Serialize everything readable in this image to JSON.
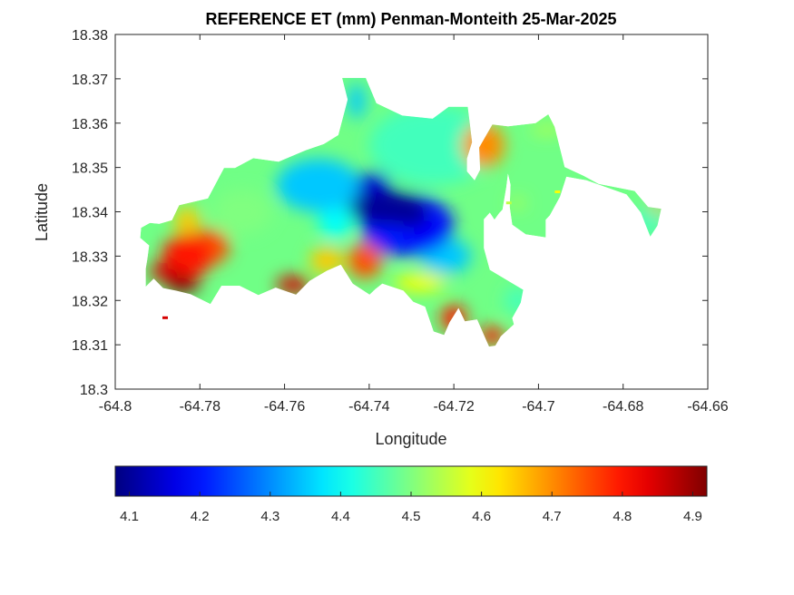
{
  "chart_data": {
    "type": "heatmap",
    "title": "REFERENCE ET (mm) Penman-Monteith 25-Mar-2025",
    "xlabel": "Longitude",
    "ylabel": "Latitude",
    "xlim": [
      -64.8,
      -64.66
    ],
    "ylim": [
      18.3,
      18.38
    ],
    "x_ticks": [
      "-64.8",
      "-64.78",
      "-64.76",
      "-64.74",
      "-64.72",
      "-64.7",
      "-64.68",
      "-64.66"
    ],
    "y_ticks": [
      "18.3",
      "18.31",
      "18.32",
      "18.33",
      "18.34",
      "18.35",
      "18.36",
      "18.37",
      "18.38"
    ],
    "colormap": "jet",
    "colorbar": {
      "location": "bottom",
      "range": [
        4.08,
        4.92
      ],
      "ticks": [
        "4.1",
        "4.2",
        "4.3",
        "4.4",
        "4.5",
        "4.6",
        "4.7",
        "4.8",
        "4.9"
      ]
    },
    "grid": false,
    "island_outline": [
      [
        -64.7939,
        18.3364
      ],
      [
        -64.7918,
        18.3375
      ],
      [
        -64.7896,
        18.3373
      ],
      [
        -64.7866,
        18.3381
      ],
      [
        -64.7849,
        18.3415
      ],
      [
        -64.7781,
        18.343
      ],
      [
        -64.7743,
        18.3499
      ],
      [
        -64.7717,
        18.3499
      ],
      [
        -64.7674,
        18.3521
      ],
      [
        -64.7614,
        18.3513
      ],
      [
        -64.755,
        18.3539
      ],
      [
        -64.7507,
        18.3553
      ],
      [
        -64.7473,
        18.3573
      ],
      [
        -64.7451,
        18.3653
      ],
      [
        -64.7464,
        18.3702
      ],
      [
        -64.7408,
        18.3702
      ],
      [
        -64.7383,
        18.3645
      ],
      [
        -64.7322,
        18.3617
      ],
      [
        -64.725,
        18.361
      ],
      [
        -64.7212,
        18.3637
      ],
      [
        -64.7167,
        18.3637
      ],
      [
        -64.7157,
        18.3557
      ],
      [
        -64.7169,
        18.352
      ],
      [
        -64.7169,
        18.3491
      ],
      [
        -64.7151,
        18.3471
      ],
      [
        -64.7138,
        18.3495
      ],
      [
        -64.714,
        18.3545
      ],
      [
        -64.7109,
        18.3597
      ],
      [
        -64.7072,
        18.3593
      ],
      [
        -64.7007,
        18.36
      ],
      [
        -64.6977,
        18.362
      ],
      [
        -64.6962,
        18.3592
      ],
      [
        -64.6938,
        18.3501
      ],
      [
        -64.6893,
        18.3481
      ],
      [
        -64.6858,
        18.3463
      ],
      [
        -64.6773,
        18.3447
      ],
      [
        -64.6741,
        18.3411
      ],
      [
        -64.671,
        18.3407
      ],
      [
        -64.6719,
        18.3369
      ],
      [
        -64.6736,
        18.3344
      ],
      [
        -64.6758,
        18.3398
      ],
      [
        -64.6792,
        18.3439
      ],
      [
        -64.6887,
        18.3471
      ],
      [
        -64.6934,
        18.3479
      ],
      [
        -64.6949,
        18.3434
      ],
      [
        -64.6973,
        18.3392
      ],
      [
        -64.6983,
        18.3382
      ],
      [
        -64.6983,
        18.3342
      ],
      [
        -64.703,
        18.3349
      ],
      [
        -64.7062,
        18.3371
      ],
      [
        -64.7068,
        18.3411
      ],
      [
        -64.7066,
        18.3461
      ],
      [
        -64.7072,
        18.3486
      ],
      [
        -64.7076,
        18.3456
      ],
      [
        -64.7085,
        18.3405
      ],
      [
        -64.7093,
        18.3397
      ],
      [
        -64.7104,
        18.3382
      ],
      [
        -64.7115,
        18.3398
      ],
      [
        -64.7129,
        18.3383
      ],
      [
        -64.7129,
        18.3318
      ],
      [
        -64.7115,
        18.3269
      ],
      [
        -64.7036,
        18.3224
      ],
      [
        -64.7042,
        18.3195
      ],
      [
        -64.7062,
        18.316
      ],
      [
        -64.7058,
        18.3146
      ],
      [
        -64.7089,
        18.3119
      ],
      [
        -64.7102,
        18.3098
      ],
      [
        -64.7117,
        18.3096
      ],
      [
        -64.7145,
        18.3157
      ],
      [
        -64.7174,
        18.3153
      ],
      [
        -64.7189,
        18.3183
      ],
      [
        -64.721,
        18.3151
      ],
      [
        -64.7223,
        18.3122
      ],
      [
        -64.7248,
        18.313
      ],
      [
        -64.7268,
        18.3186
      ],
      [
        -64.7296,
        18.3197
      ],
      [
        -64.7319,
        18.3222
      ],
      [
        -64.7369,
        18.3238
      ],
      [
        -64.7386,
        18.3225
      ],
      [
        -64.7399,
        18.3213
      ],
      [
        -64.7439,
        18.3238
      ],
      [
        -64.7467,
        18.3281
      ],
      [
        -64.75,
        18.3267
      ],
      [
        -64.7541,
        18.3244
      ],
      [
        -64.7573,
        18.3213
      ],
      [
        -64.7621,
        18.3229
      ],
      [
        -64.7662,
        18.3212
      ],
      [
        -64.7706,
        18.3233
      ],
      [
        -64.7749,
        18.3233
      ],
      [
        -64.7775,
        18.3192
      ],
      [
        -64.7822,
        18.3214
      ],
      [
        -64.7856,
        18.3222
      ],
      [
        -64.7887,
        18.3228
      ],
      [
        -64.7909,
        18.3249
      ],
      [
        -64.7928,
        18.3231
      ],
      [
        -64.7928,
        18.3272
      ],
      [
        -64.7924,
        18.3294
      ],
      [
        -64.792,
        18.3324
      ],
      [
        -64.7941,
        18.3341
      ]
    ],
    "hotspots": [
      {
        "lon": -64.7358,
        "lat": 18.341,
        "value": 4.1,
        "rx": 0.009,
        "ry": 0.004
      },
      {
        "lon": -64.7308,
        "lat": 18.3395,
        "value": 4.1,
        "rx": 0.005,
        "ry": 0.003
      },
      {
        "lon": -64.739,
        "lat": 18.346,
        "value": 4.15,
        "rx": 0.004,
        "ry": 0.003
      },
      {
        "lon": -64.7258,
        "lat": 18.335,
        "value": 4.18,
        "rx": 0.005,
        "ry": 0.003
      },
      {
        "lon": -64.731,
        "lat": 18.337,
        "value": 4.2,
        "rx": 0.011,
        "ry": 0.007
      },
      {
        "lon": -64.722,
        "lat": 18.33,
        "value": 4.35,
        "rx": 0.006,
        "ry": 0.004
      },
      {
        "lon": -64.725,
        "lat": 18.355,
        "value": 4.45,
        "rx": 0.015,
        "ry": 0.009
      },
      {
        "lon": -64.713,
        "lat": 18.355,
        "value": 4.7,
        "rx": 0.005,
        "ry": 0.005
      },
      {
        "lon": -64.752,
        "lat": 18.346,
        "value": 4.35,
        "rx": 0.01,
        "ry": 0.006
      },
      {
        "lon": -64.77,
        "lat": 18.34,
        "value": 4.5,
        "rx": 0.007,
        "ry": 0.005
      },
      {
        "lon": -64.783,
        "lat": 18.33,
        "value": 4.8,
        "rx": 0.006,
        "ry": 0.005
      },
      {
        "lon": -64.778,
        "lat": 18.332,
        "value": 4.75,
        "rx": 0.005,
        "ry": 0.004
      },
      {
        "lon": -64.784,
        "lat": 18.3235,
        "value": 4.92,
        "rx": 0.004,
        "ry": 0.0018
      },
      {
        "lon": -64.788,
        "lat": 18.3265,
        "value": 4.85,
        "rx": 0.004,
        "ry": 0.002
      },
      {
        "lon": -64.783,
        "lat": 18.338,
        "value": 4.65,
        "rx": 0.003,
        "ry": 0.003
      },
      {
        "lon": -64.758,
        "lat": 18.3235,
        "value": 4.85,
        "rx": 0.004,
        "ry": 0.002
      },
      {
        "lon": -64.75,
        "lat": 18.329,
        "value": 4.65,
        "rx": 0.004,
        "ry": 0.003
      },
      {
        "lon": -64.741,
        "lat": 18.329,
        "value": 4.75,
        "rx": 0.004,
        "ry": 0.004
      },
      {
        "lon": -64.728,
        "lat": 18.324,
        "value": 4.6,
        "rx": 0.006,
        "ry": 0.002
      },
      {
        "lon": -64.72,
        "lat": 18.316,
        "value": 4.8,
        "rx": 0.003,
        "ry": 0.003
      },
      {
        "lon": -64.711,
        "lat": 18.312,
        "value": 4.8,
        "rx": 0.003,
        "ry": 0.002
      },
      {
        "lon": -64.705,
        "lat": 18.32,
        "value": 4.45,
        "rx": 0.003,
        "ry": 0.003
      },
      {
        "lon": -64.705,
        "lat": 18.342,
        "value": 4.55,
        "rx": 0.002,
        "ry": 0.001
      },
      {
        "lon": -64.698,
        "lat": 18.3585,
        "value": 4.55,
        "rx": 0.004,
        "ry": 0.001
      },
      {
        "lon": -64.674,
        "lat": 18.338,
        "value": 4.45,
        "rx": 0.004,
        "ry": 0.003
      },
      {
        "lon": -64.672,
        "lat": 18.341,
        "value": 4.7,
        "rx": 0.001,
        "ry": 0.002
      },
      {
        "lon": -64.743,
        "lat": 18.365,
        "value": 4.35,
        "rx": 0.002,
        "ry": 0.004
      },
      {
        "lon": -64.748,
        "lat": 18.338,
        "value": 4.4,
        "rx": 0.004,
        "ry": 0.004
      }
    ],
    "detached_pixels": [
      {
        "lon": -64.7882,
        "lat": 18.3161,
        "value": 4.85
      },
      {
        "lon": -64.6955,
        "lat": 18.3445,
        "value": 4.6
      },
      {
        "lon": -64.707,
        "lat": 18.342,
        "value": 4.55
      }
    ]
  }
}
